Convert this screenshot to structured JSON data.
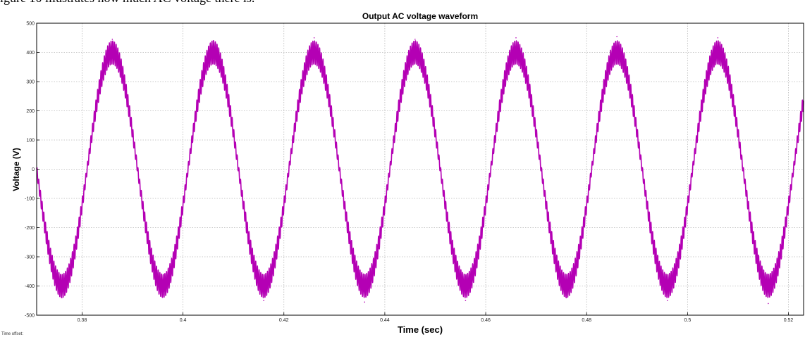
{
  "page": {
    "caption": "igure 10 illustrates how much AC voltage there is."
  },
  "chart_data": {
    "type": "line",
    "title": "Output AC voltage waveform",
    "xlabel": "Time (sec)",
    "ylabel": "Voltage (V)",
    "xlim": [
      0.371,
      0.523
    ],
    "ylim": [
      -500,
      500
    ],
    "x_ticks": [
      0.38,
      0.4,
      0.42,
      0.44,
      0.46,
      0.48,
      0.5,
      0.52
    ],
    "x_tick_labels": [
      "0.38",
      "0.4",
      "0.42",
      "0.44",
      "0.46",
      "0.48",
      "0.5",
      "0.52"
    ],
    "y_ticks": [
      -500,
      -400,
      -300,
      -200,
      -100,
      0,
      100,
      200,
      300,
      400,
      500
    ],
    "y_tick_labels": [
      "-500",
      "-400",
      "-300",
      "-200",
      "-100",
      "0",
      "100",
      "200",
      "300",
      "400",
      "500"
    ],
    "grid": true,
    "footnote": "Time offset:",
    "series": [
      {
        "color": "#b400b4",
        "fundamental_frequency_hz": 50,
        "amplitude_v": 400,
        "ripple_amplitude_v": 40,
        "peaks": [
          {
            "x": 0.386,
            "y": 445
          },
          {
            "x": 0.406,
            "y": 440
          },
          {
            "x": 0.426,
            "y": 450
          },
          {
            "x": 0.446,
            "y": 445
          },
          {
            "x": 0.466,
            "y": 450
          },
          {
            "x": 0.486,
            "y": 455
          },
          {
            "x": 0.506,
            "y": 450
          }
        ],
        "troughs": [
          {
            "x": 0.376,
            "y": -440
          },
          {
            "x": 0.396,
            "y": -430
          },
          {
            "x": 0.416,
            "y": -450
          },
          {
            "x": 0.436,
            "y": -455
          },
          {
            "x": 0.456,
            "y": -450
          },
          {
            "x": 0.476,
            "y": -440
          },
          {
            "x": 0.496,
            "y": -450
          },
          {
            "x": 0.516,
            "y": -460
          }
        ]
      }
    ]
  }
}
